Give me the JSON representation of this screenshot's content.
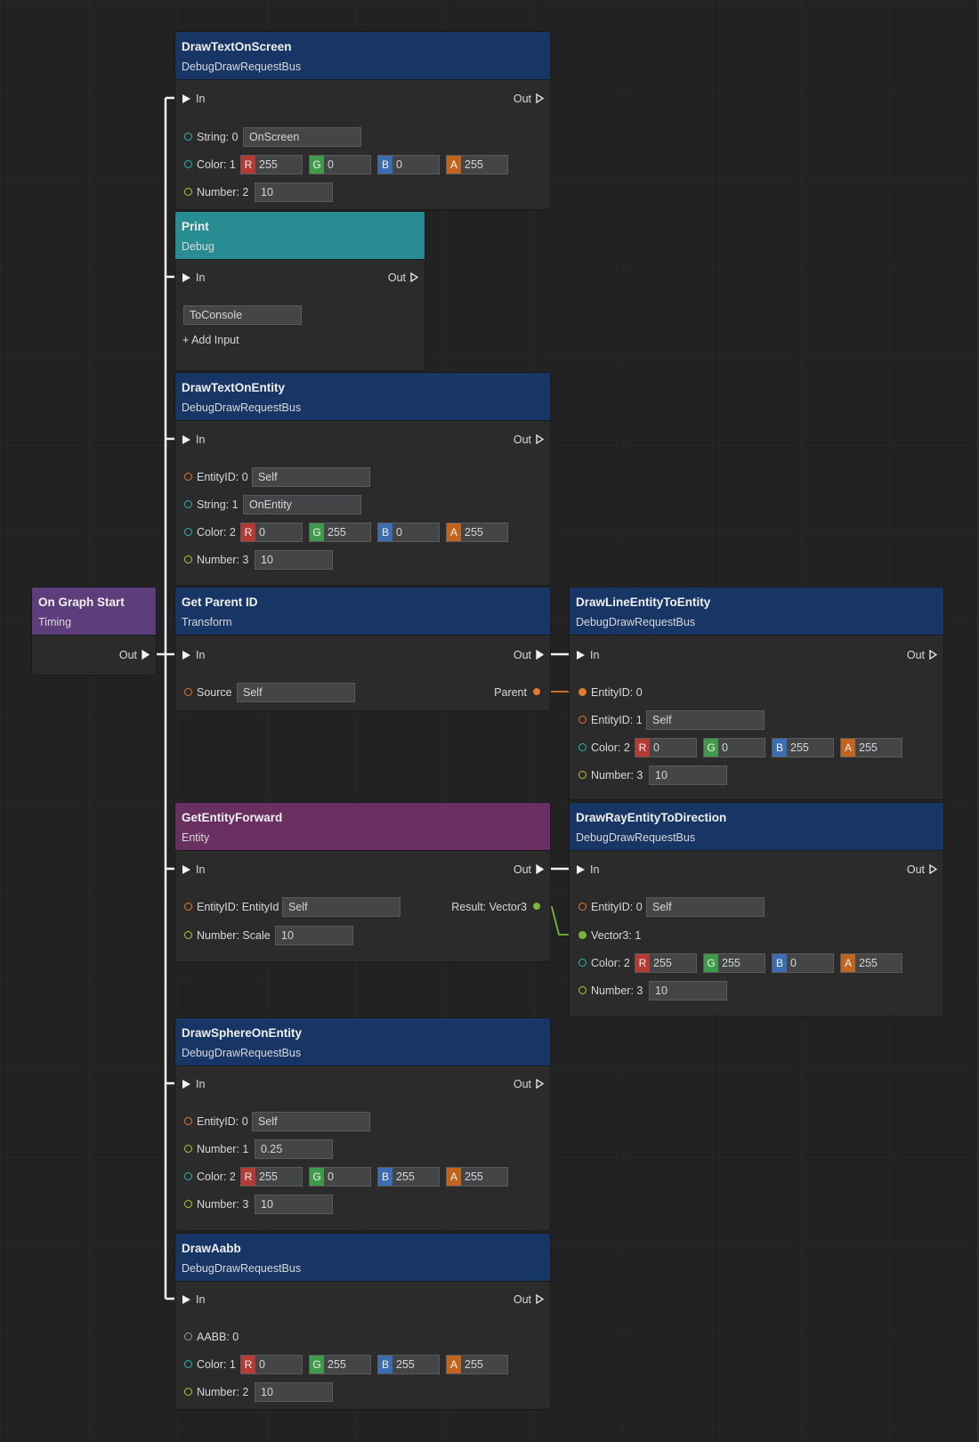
{
  "colors": {
    "canvas_bg": "#222222",
    "header_blue": "#173565",
    "header_teal": "#288d92",
    "header_purple": "#5d3d7b",
    "header_magenta": "#6a2f61",
    "pin_entity": "#e07a2c",
    "pin_string_color": "#2bb6b0",
    "pin_number": "#c2c231",
    "pin_vector": "#7ab53d"
  },
  "nodes": {
    "drawTextOnScreen": {
      "title": "DrawTextOnScreen",
      "subtitle": "DebugDrawRequestBus",
      "in": "In",
      "out": "Out",
      "string_label": "String: 0",
      "string_value": "OnScreen",
      "color_label": "Color: 1",
      "r": "255",
      "g": "0",
      "b": "0",
      "a": "255",
      "number_label": "Number: 2",
      "number_value": "10"
    },
    "print": {
      "title": "Print",
      "subtitle": "Debug",
      "in": "In",
      "out": "Out",
      "text_value": "ToConsole",
      "add_input": "Add Input"
    },
    "drawTextOnEntity": {
      "title": "DrawTextOnEntity",
      "subtitle": "DebugDrawRequestBus",
      "in": "In",
      "out": "Out",
      "entity_label": "EntityID: 0",
      "entity_value": "Self",
      "string_label": "String: 1",
      "string_value": "OnEntity",
      "color_label": "Color: 2",
      "r": "0",
      "g": "255",
      "b": "0",
      "a": "255",
      "number_label": "Number: 3",
      "number_value": "10"
    },
    "onGraphStart": {
      "title": "On Graph Start",
      "subtitle": "Timing",
      "out": "Out"
    },
    "getParentId": {
      "title": "Get Parent ID",
      "subtitle": "Transform",
      "in": "In",
      "out": "Out",
      "source_label": "Source",
      "source_value": "Self",
      "parent_label": "Parent"
    },
    "drawLineEntityToEntity": {
      "title": "DrawLineEntityToEntity",
      "subtitle": "DebugDrawRequestBus",
      "in": "In",
      "out": "Out",
      "entity0_label": "EntityID: 0",
      "entity1_label": "EntityID: 1",
      "entity1_value": "Self",
      "color_label": "Color: 2",
      "r": "0",
      "g": "0",
      "b": "255",
      "a": "255",
      "number_label": "Number: 3",
      "number_value": "10"
    },
    "getEntityForward": {
      "title": "GetEntityForward",
      "subtitle": "Entity",
      "in": "In",
      "out": "Out",
      "entity_label": "EntityID: EntityId",
      "entity_value": "Self",
      "scale_label": "Number: Scale",
      "scale_value": "10",
      "result_label": "Result: Vector3"
    },
    "drawRayEntityToDirection": {
      "title": "DrawRayEntityToDirection",
      "subtitle": "DebugDrawRequestBus",
      "in": "In",
      "out": "Out",
      "entity_label": "EntityID: 0",
      "entity_value": "Self",
      "vector_label": "Vector3: 1",
      "color_label": "Color: 2",
      "r": "255",
      "g": "255",
      "b": "0",
      "a": "255",
      "number_label": "Number: 3",
      "number_value": "10"
    },
    "drawSphereOnEntity": {
      "title": "DrawSphereOnEntity",
      "subtitle": "DebugDrawRequestBus",
      "in": "In",
      "out": "Out",
      "entity_label": "EntityID: 0",
      "entity_value": "Self",
      "number1_label": "Number: 1",
      "number1_value": "0.25",
      "color_label": "Color: 2",
      "r": "255",
      "g": "0",
      "b": "255",
      "a": "255",
      "number3_label": "Number: 3",
      "number3_value": "10"
    },
    "drawAabb": {
      "title": "DrawAabb",
      "subtitle": "DebugDrawRequestBus",
      "in": "In",
      "out": "Out",
      "aabb_label": "AABB: 0",
      "color_label": "Color: 1",
      "r": "0",
      "g": "255",
      "b": "255",
      "a": "255",
      "number_label": "Number: 2",
      "number_value": "10"
    }
  },
  "channel_tags": {
    "r": "R",
    "g": "G",
    "b": "B",
    "a": "A"
  }
}
